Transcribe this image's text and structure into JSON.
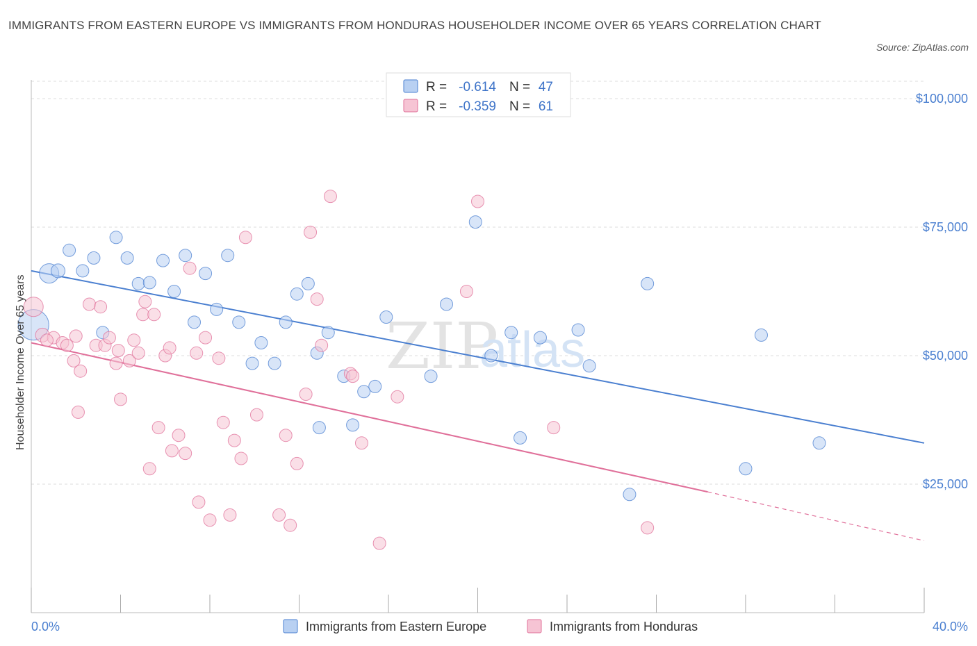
{
  "title": "IMMIGRANTS FROM EASTERN EUROPE VS IMMIGRANTS FROM HONDURAS HOUSEHOLDER INCOME OVER 65 YEARS CORRELATION CHART",
  "source": "Source: ZipAtlas.com",
  "watermark": "ZIPatlas",
  "colors": {
    "blue": "#4a7fd0",
    "blue_fill": "#b8d0f2",
    "pink": "#e0709a",
    "pink_fill": "#f6c4d4"
  },
  "chart_data": {
    "type": "scatter",
    "title": "IMMIGRANTS FROM EASTERN EUROPE VS IMMIGRANTS FROM HONDURAS HOUSEHOLDER INCOME OVER 65 YEARS CORRELATION CHART",
    "xlabel": "",
    "ylabel": "Householder Income Over 65 years",
    "xlim": [
      0,
      40
    ],
    "ylim": [
      0,
      105000
    ],
    "x_tick_labels": [
      "0.0%",
      "40.0%"
    ],
    "y_ticks": [
      25000,
      50000,
      75000,
      100000
    ],
    "y_tick_labels": [
      "$25,000",
      "$50,000",
      "$75,000",
      "$100,000"
    ],
    "grid": true,
    "legend_stats": [
      {
        "r_label": "R =",
        "r": "-0.614",
        "n_label": "N =",
        "n": "47"
      },
      {
        "r_label": "R =",
        "r": "-0.359",
        "n_label": "N =",
        "n": "61"
      }
    ],
    "series": [
      {
        "name": "Immigrants from Eastern Europe",
        "color": "#4a7fd0",
        "trend": {
          "x0": 0,
          "y0": 66500,
          "x1": 40,
          "y1": 33000
        },
        "points": [
          [
            0.1,
            56000,
            22
          ],
          [
            0.8,
            66000,
            14
          ],
          [
            1.2,
            66500,
            10
          ],
          [
            1.7,
            70500,
            9
          ],
          [
            2.3,
            66500,
            9
          ],
          [
            2.8,
            69000,
            9
          ],
          [
            3.2,
            54500,
            9
          ],
          [
            3.8,
            73000,
            9
          ],
          [
            4.3,
            69000,
            9
          ],
          [
            4.8,
            64000,
            9
          ],
          [
            5.3,
            64200,
            9
          ],
          [
            5.9,
            68500,
            9
          ],
          [
            6.4,
            62500,
            9
          ],
          [
            6.9,
            69500,
            9
          ],
          [
            7.3,
            56500,
            9
          ],
          [
            7.8,
            66000,
            9
          ],
          [
            8.3,
            59000,
            9
          ],
          [
            8.8,
            69500,
            9
          ],
          [
            9.3,
            56500,
            9
          ],
          [
            9.9,
            48500,
            9
          ],
          [
            10.3,
            52500,
            9
          ],
          [
            10.9,
            48500,
            9
          ],
          [
            11.4,
            56500,
            9
          ],
          [
            11.9,
            62000,
            9
          ],
          [
            12.4,
            64000,
            9
          ],
          [
            12.8,
            50500,
            9
          ],
          [
            12.9,
            36000,
            9
          ],
          [
            13.3,
            54500,
            9
          ],
          [
            14.0,
            46000,
            9
          ],
          [
            14.4,
            36500,
            9
          ],
          [
            14.9,
            43000,
            9
          ],
          [
            15.4,
            44000,
            9
          ],
          [
            15.9,
            57500,
            9
          ],
          [
            17.9,
            46000,
            9
          ],
          [
            18.6,
            60000,
            9
          ],
          [
            19.9,
            76000,
            9
          ],
          [
            20.6,
            50000,
            9
          ],
          [
            21.5,
            54500,
            9
          ],
          [
            21.9,
            34000,
            9
          ],
          [
            22.8,
            53500,
            9
          ],
          [
            24.5,
            55000,
            9
          ],
          [
            25.0,
            48000,
            9
          ],
          [
            26.8,
            23000,
            9
          ],
          [
            27.6,
            64000,
            9
          ],
          [
            32.0,
            28000,
            9
          ],
          [
            32.7,
            54000,
            9
          ],
          [
            35.3,
            33000,
            9
          ]
        ]
      },
      {
        "name": "Immigrants from Honduras",
        "color": "#e0709a",
        "trend": {
          "x0": 0,
          "y0": 52500,
          "x1": 30.3,
          "y1": 23500
        },
        "trend_dashed": {
          "x0": 30.3,
          "y0": 23500,
          "x1": 40,
          "y1": 14000
        },
        "points": [
          [
            0.1,
            59500,
            14
          ],
          [
            0.5,
            54000,
            10
          ],
          [
            1.0,
            53500,
            9
          ],
          [
            1.4,
            52500,
            9
          ],
          [
            1.6,
            52000,
            9
          ],
          [
            1.9,
            49000,
            9
          ],
          [
            2.0,
            53800,
            9
          ],
          [
            2.2,
            47000,
            9
          ],
          [
            2.6,
            60000,
            9
          ],
          [
            2.9,
            52000,
            9
          ],
          [
            3.1,
            59500,
            9
          ],
          [
            3.3,
            52000,
            9
          ],
          [
            3.5,
            53500,
            9
          ],
          [
            3.8,
            48500,
            9
          ],
          [
            3.9,
            51000,
            9
          ],
          [
            4.0,
            41500,
            9
          ],
          [
            4.4,
            49000,
            9
          ],
          [
            4.6,
            53000,
            9
          ],
          [
            4.8,
            50500,
            9
          ],
          [
            5.0,
            58000,
            9
          ],
          [
            5.1,
            60500,
            9
          ],
          [
            5.3,
            28000,
            9
          ],
          [
            5.5,
            58000,
            9
          ],
          [
            5.7,
            36000,
            9
          ],
          [
            6.0,
            50000,
            9
          ],
          [
            6.2,
            51500,
            9
          ],
          [
            6.3,
            31500,
            9
          ],
          [
            6.6,
            34500,
            9
          ],
          [
            6.9,
            31000,
            9
          ],
          [
            7.1,
            67000,
            9
          ],
          [
            7.4,
            50500,
            9
          ],
          [
            7.5,
            21500,
            9
          ],
          [
            7.8,
            53500,
            9
          ],
          [
            8.0,
            18000,
            9
          ],
          [
            8.4,
            49500,
            9
          ],
          [
            8.6,
            37000,
            9
          ],
          [
            8.9,
            19000,
            9
          ],
          [
            9.1,
            33500,
            9
          ],
          [
            9.4,
            30000,
            9
          ],
          [
            9.6,
            73000,
            9
          ],
          [
            10.1,
            38500,
            9
          ],
          [
            11.1,
            19000,
            9
          ],
          [
            11.4,
            34500,
            9
          ],
          [
            11.6,
            17000,
            9
          ],
          [
            11.9,
            29000,
            9
          ],
          [
            12.3,
            42500,
            9
          ],
          [
            12.5,
            74000,
            9
          ],
          [
            12.8,
            61000,
            9
          ],
          [
            13.0,
            52000,
            9
          ],
          [
            13.4,
            81000,
            9
          ],
          [
            14.3,
            46500,
            9
          ],
          [
            14.4,
            46000,
            9
          ],
          [
            14.8,
            33000,
            9
          ],
          [
            15.6,
            13500,
            9
          ],
          [
            16.4,
            42000,
            9
          ],
          [
            19.5,
            62500,
            9
          ],
          [
            20.0,
            80000,
            9
          ],
          [
            23.4,
            36000,
            9
          ],
          [
            27.6,
            16500,
            9
          ],
          [
            2.1,
            39000,
            9
          ],
          [
            0.7,
            53000,
            9
          ]
        ]
      }
    ]
  }
}
